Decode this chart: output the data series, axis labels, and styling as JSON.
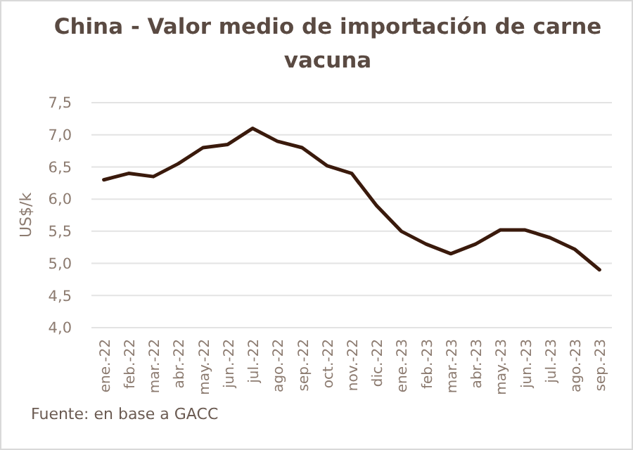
{
  "chart_data": {
    "type": "line",
    "title": "China - Valor medio de importación de carne vacuna",
    "ylabel": "US$/k",
    "annotations": [
      "Fuente:  en base a GACC"
    ],
    "categories": [
      "ene.-22",
      "feb.-22",
      "mar.-22",
      "abr.-22",
      "may.-22",
      "jun.-22",
      "jul.-22",
      "ago.-22",
      "sep.-22",
      "oct.-22",
      "nov.-22",
      "dic.-22",
      "ene.-23",
      "feb.-23",
      "mar.-23",
      "abr.-23",
      "may.-23",
      "jun.-23",
      "jul.-23",
      "ago.-23",
      "sep.-23"
    ],
    "series": [
      {
        "color": "#3a1a0c",
        "values": [
          6.3,
          6.4,
          6.35,
          6.55,
          6.8,
          6.85,
          7.1,
          6.9,
          6.8,
          6.52,
          6.4,
          5.9,
          5.5,
          5.3,
          5.15,
          5.3,
          5.52,
          5.52,
          5.4,
          5.22,
          4.9
        ]
      }
    ],
    "ylim": [
      4,
      7.5
    ],
    "yticks": [
      {
        "value": 4,
        "label": "4,0"
      },
      {
        "value": 4.5,
        "label": "4,5"
      },
      {
        "value": 5,
        "label": "5,0"
      },
      {
        "value": 5.5,
        "label": "5,5"
      },
      {
        "value": 6,
        "label": "6,0"
      },
      {
        "value": 6.5,
        "label": "6,5"
      },
      {
        "value": 7,
        "label": "7,0"
      },
      {
        "value": 7.5,
        "label": "7,5"
      }
    ],
    "grid": "y",
    "marker": "none",
    "line_style": "solid"
  }
}
